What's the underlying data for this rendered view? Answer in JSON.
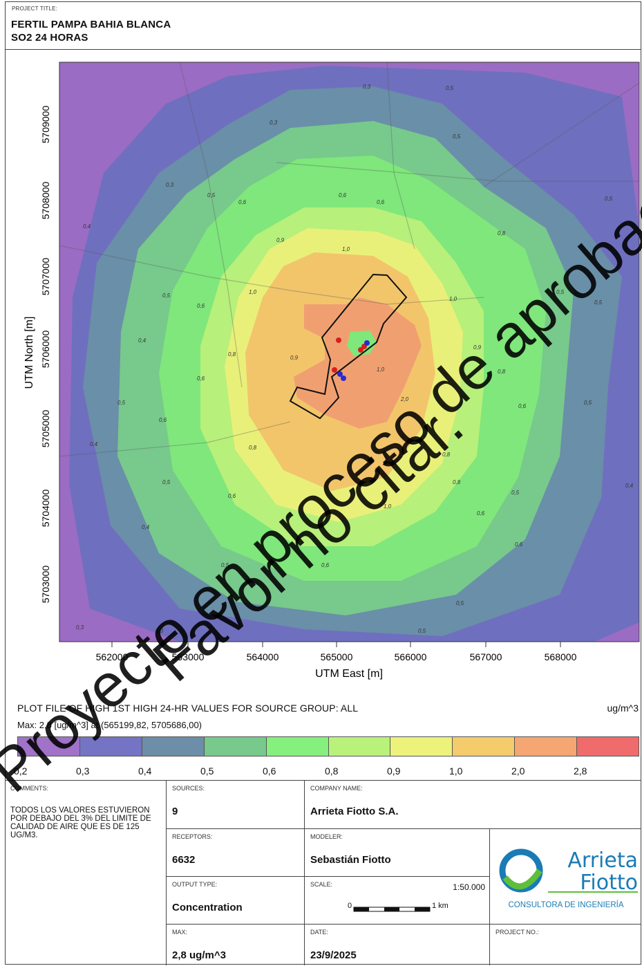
{
  "header": {
    "project_title_label": "PROJECT TITLE:",
    "title_line1": "FERTIL PAMPA BAHIA BLANCA",
    "title_line2": "SO2 24 HORAS"
  },
  "map": {
    "y_axis_title": "UTM North [m]",
    "x_axis_title": "UTM East [m]",
    "y_ticks": [
      "5709000",
      "5708000",
      "5707000",
      "5706000",
      "5705000",
      "5704000",
      "5703000"
    ],
    "x_ticks": [
      "562000",
      "563000",
      "564000",
      "565000",
      "566000",
      "567000",
      "568000"
    ],
    "contour_labels": [
      "0,3",
      "0,4",
      "0,5",
      "0,6",
      "0,8",
      "0,9",
      "1,0",
      "2,0"
    ],
    "contour_colors": [
      "#9b6cc3",
      "#6f6fbf",
      "#6a8fa8",
      "#78c98c",
      "#7fe77b",
      "#b7f07a",
      "#e9f079",
      "#f2c56b",
      "#f0a070",
      "#e86a6a"
    ]
  },
  "plot": {
    "description": "PLOT FILE OF HIGH 1ST HIGH 24-HR VALUES FOR SOURCE GROUP: ALL",
    "unit": "ug/m^3",
    "max_line": "Max:  2,8  [ug/m^3]  at  (565199,82, 5705686,00)"
  },
  "legend": {
    "colors": [
      "#a072c8",
      "#7473c4",
      "#6c8ea9",
      "#78c98c",
      "#85f07d",
      "#b9f27b",
      "#ecf27a",
      "#f4cc6c",
      "#f5a672",
      "#f06b6b"
    ],
    "labels": [
      "0,2",
      "0,3",
      "0,4",
      "0,5",
      "0,6",
      "0,8",
      "0,9",
      "1,0",
      "2,0",
      "2,8"
    ]
  },
  "info": {
    "comments_label": "COMMENTS:",
    "comments_text": "TODOS LOS VALORES ESTUVIERON POR DEBAJO DEL 3% DEL LIMITE DE CALIDAD DE AIRE QUE ES DE 125 UG/M3.",
    "sources_label": "SOURCES:",
    "sources_value": "9",
    "company_label": "COMPANY NAME:",
    "company_value": "Arrieta Fiotto S.A.",
    "receptors_label": "RECEPTORS:",
    "receptors_value": "6632",
    "modeler_label": "MODELER:",
    "modeler_value": "Sebastián Fiotto",
    "output_label": "OUTPUT TYPE:",
    "output_value": "Concentration",
    "scale_label": "SCALE:",
    "scale_value": "1:50.000",
    "scale_zero": "0",
    "scale_km": "1 km",
    "max_label": "MAX:",
    "max_value": "2,8 ug/m^3",
    "date_label": "DATE:",
    "date_value": "23/9/2025",
    "project_no_label": "PROJECT NO.:",
    "logo_line1": "Arrieta",
    "logo_line2": "Fiotto",
    "logo_sub": "CONSULTORA DE INGENIERÍA"
  },
  "watermark": {
    "line1": "Proyecto en proceso de aprobación.",
    "line2": "Favor no citar."
  }
}
